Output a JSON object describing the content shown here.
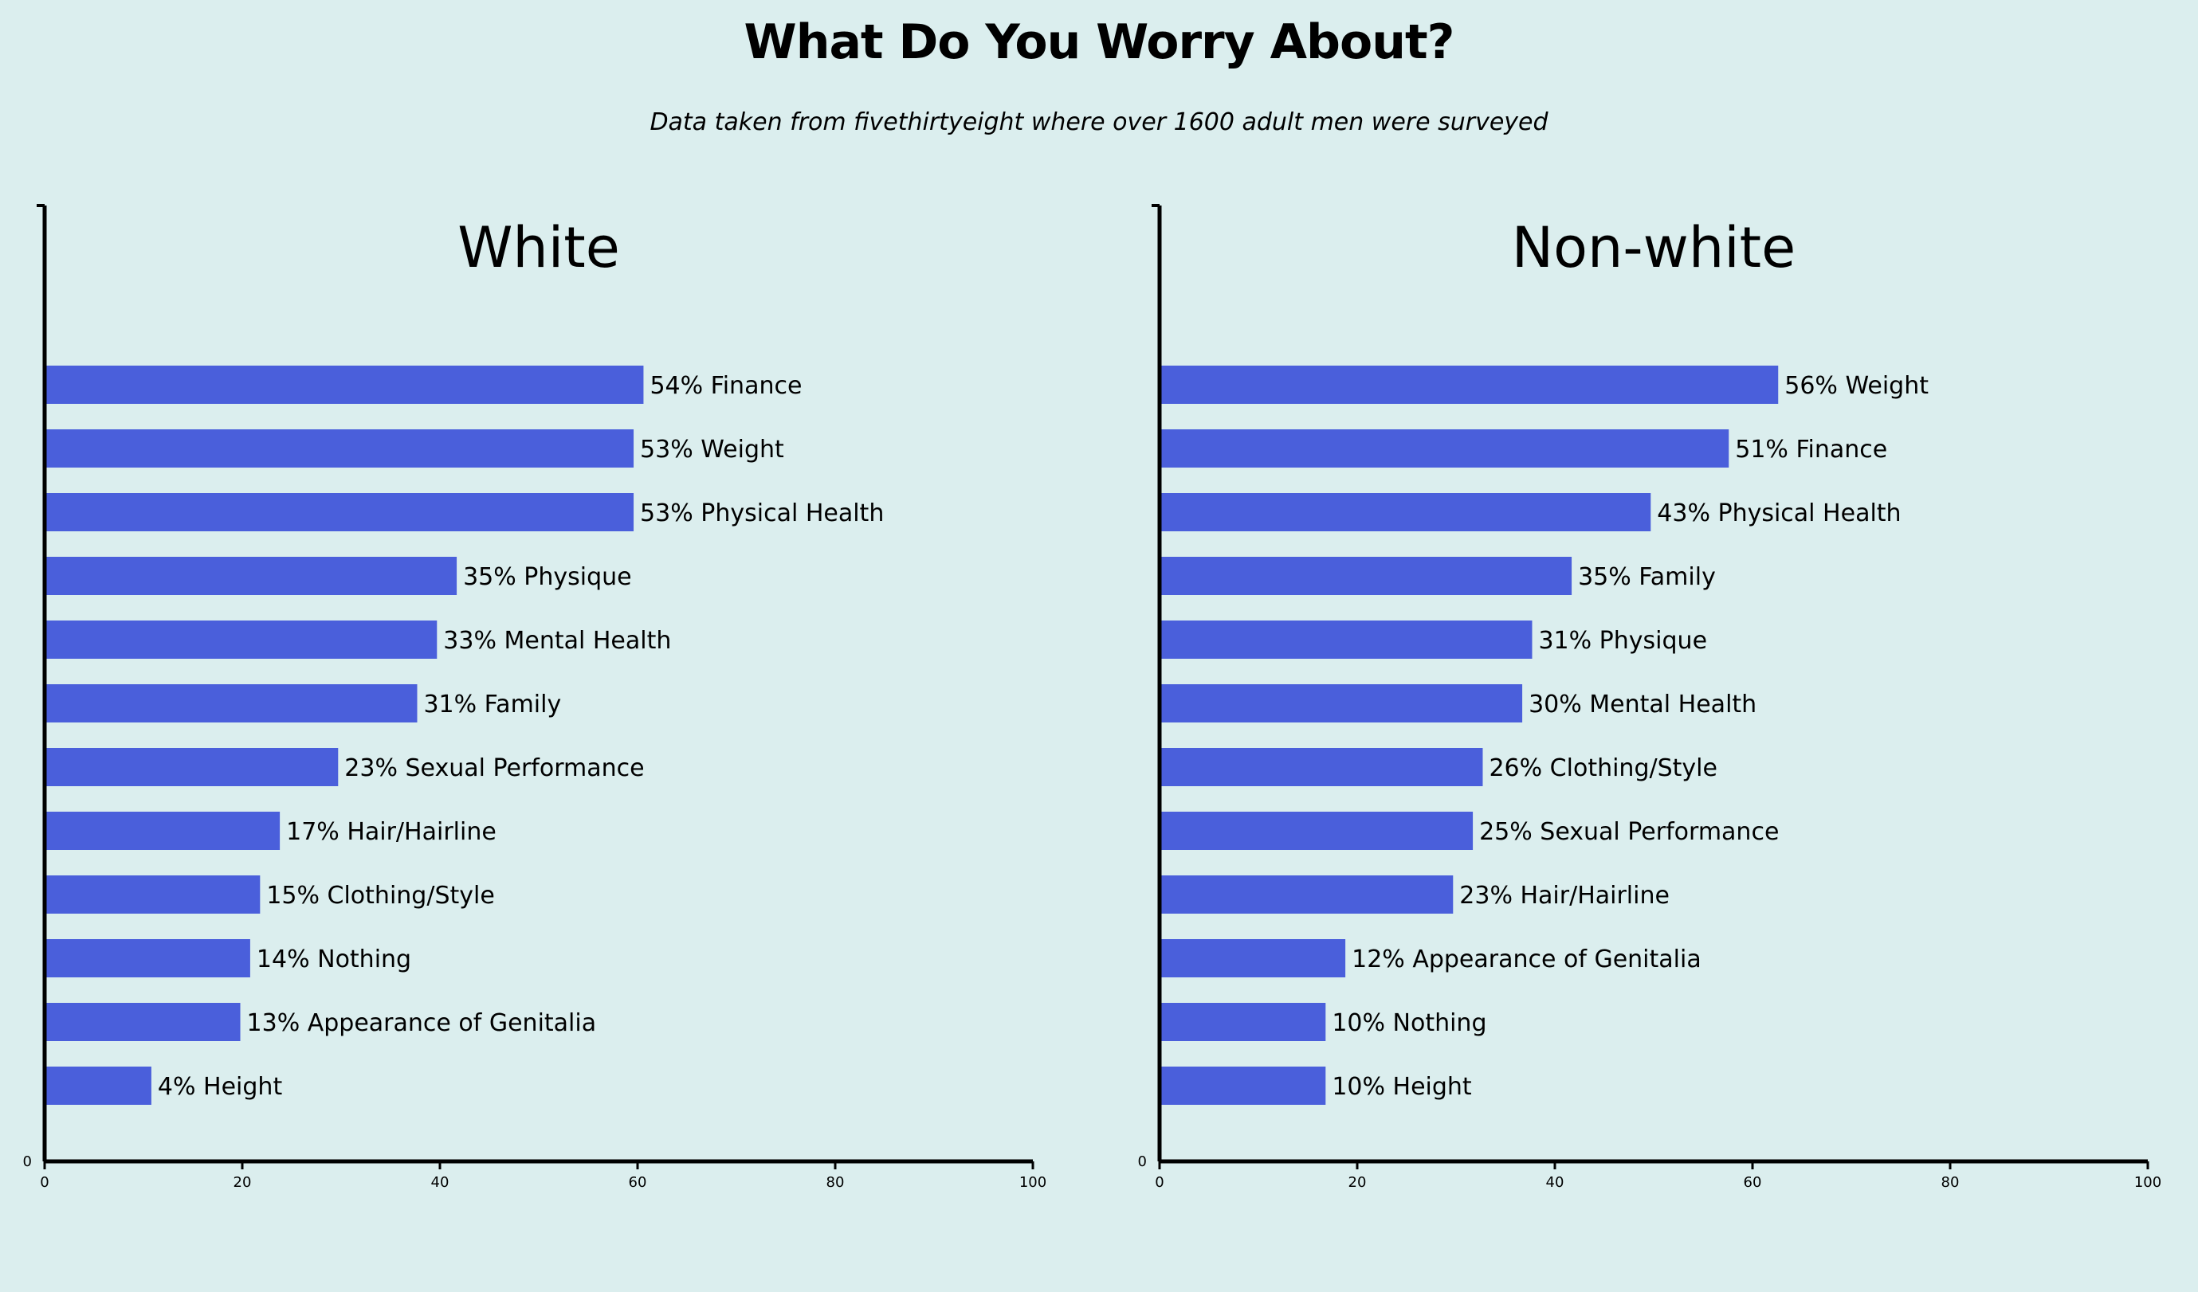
{
  "title": "What Do You Worry About?",
  "subtitle": "Data taken from fivethirtyeight where over 1600 adult men were surveyed",
  "colors": {
    "background": "#dbeeee",
    "bar": "#4a5fdb",
    "axis": "#000000"
  },
  "chart_data": [
    {
      "type": "bar",
      "orientation": "horizontal",
      "title": "White",
      "xlim": [
        0,
        100
      ],
      "xticks": [
        0,
        20,
        40,
        60,
        80,
        100
      ],
      "ytick_labels": [
        "0"
      ],
      "grid": false,
      "bars": [
        {
          "value": 60.6,
          "label": "54% Finance"
        },
        {
          "value": 59.6,
          "label": "53% Weight"
        },
        {
          "value": 59.6,
          "label": "53% Physical Health"
        },
        {
          "value": 41.7,
          "label": "35% Physique"
        },
        {
          "value": 39.7,
          "label": "33% Mental Health"
        },
        {
          "value": 37.7,
          "label": "31% Family"
        },
        {
          "value": 29.7,
          "label": "23% Sexual Performance"
        },
        {
          "value": 23.8,
          "label": "17% Hair/Hairline"
        },
        {
          "value": 21.8,
          "label": "15% Clothing/Style"
        },
        {
          "value": 20.8,
          "label": "14% Nothing"
        },
        {
          "value": 19.8,
          "label": "13% Appearance of Genitalia"
        },
        {
          "value": 10.8,
          "label": "4% Height"
        }
      ]
    },
    {
      "type": "bar",
      "orientation": "horizontal",
      "title": "Non-white",
      "xlim": [
        0,
        100
      ],
      "xticks": [
        0,
        20,
        40,
        60,
        80,
        100
      ],
      "ytick_labels": [
        "0"
      ],
      "grid": false,
      "bars": [
        {
          "value": 62.6,
          "label": "56% Weight"
        },
        {
          "value": 57.6,
          "label": "51% Finance"
        },
        {
          "value": 49.7,
          "label": "43% Physical Health"
        },
        {
          "value": 41.7,
          "label": "35% Family"
        },
        {
          "value": 37.7,
          "label": "31% Physique"
        },
        {
          "value": 36.7,
          "label": "30% Mental Health"
        },
        {
          "value": 32.7,
          "label": "26% Clothing/Style"
        },
        {
          "value": 31.7,
          "label": "25% Sexual Performance"
        },
        {
          "value": 29.7,
          "label": "23% Hair/Hairline"
        },
        {
          "value": 18.8,
          "label": "12% Appearance of Genitalia"
        },
        {
          "value": 16.8,
          "label": "10% Nothing"
        },
        {
          "value": 16.8,
          "label": "10% Height"
        }
      ]
    }
  ]
}
